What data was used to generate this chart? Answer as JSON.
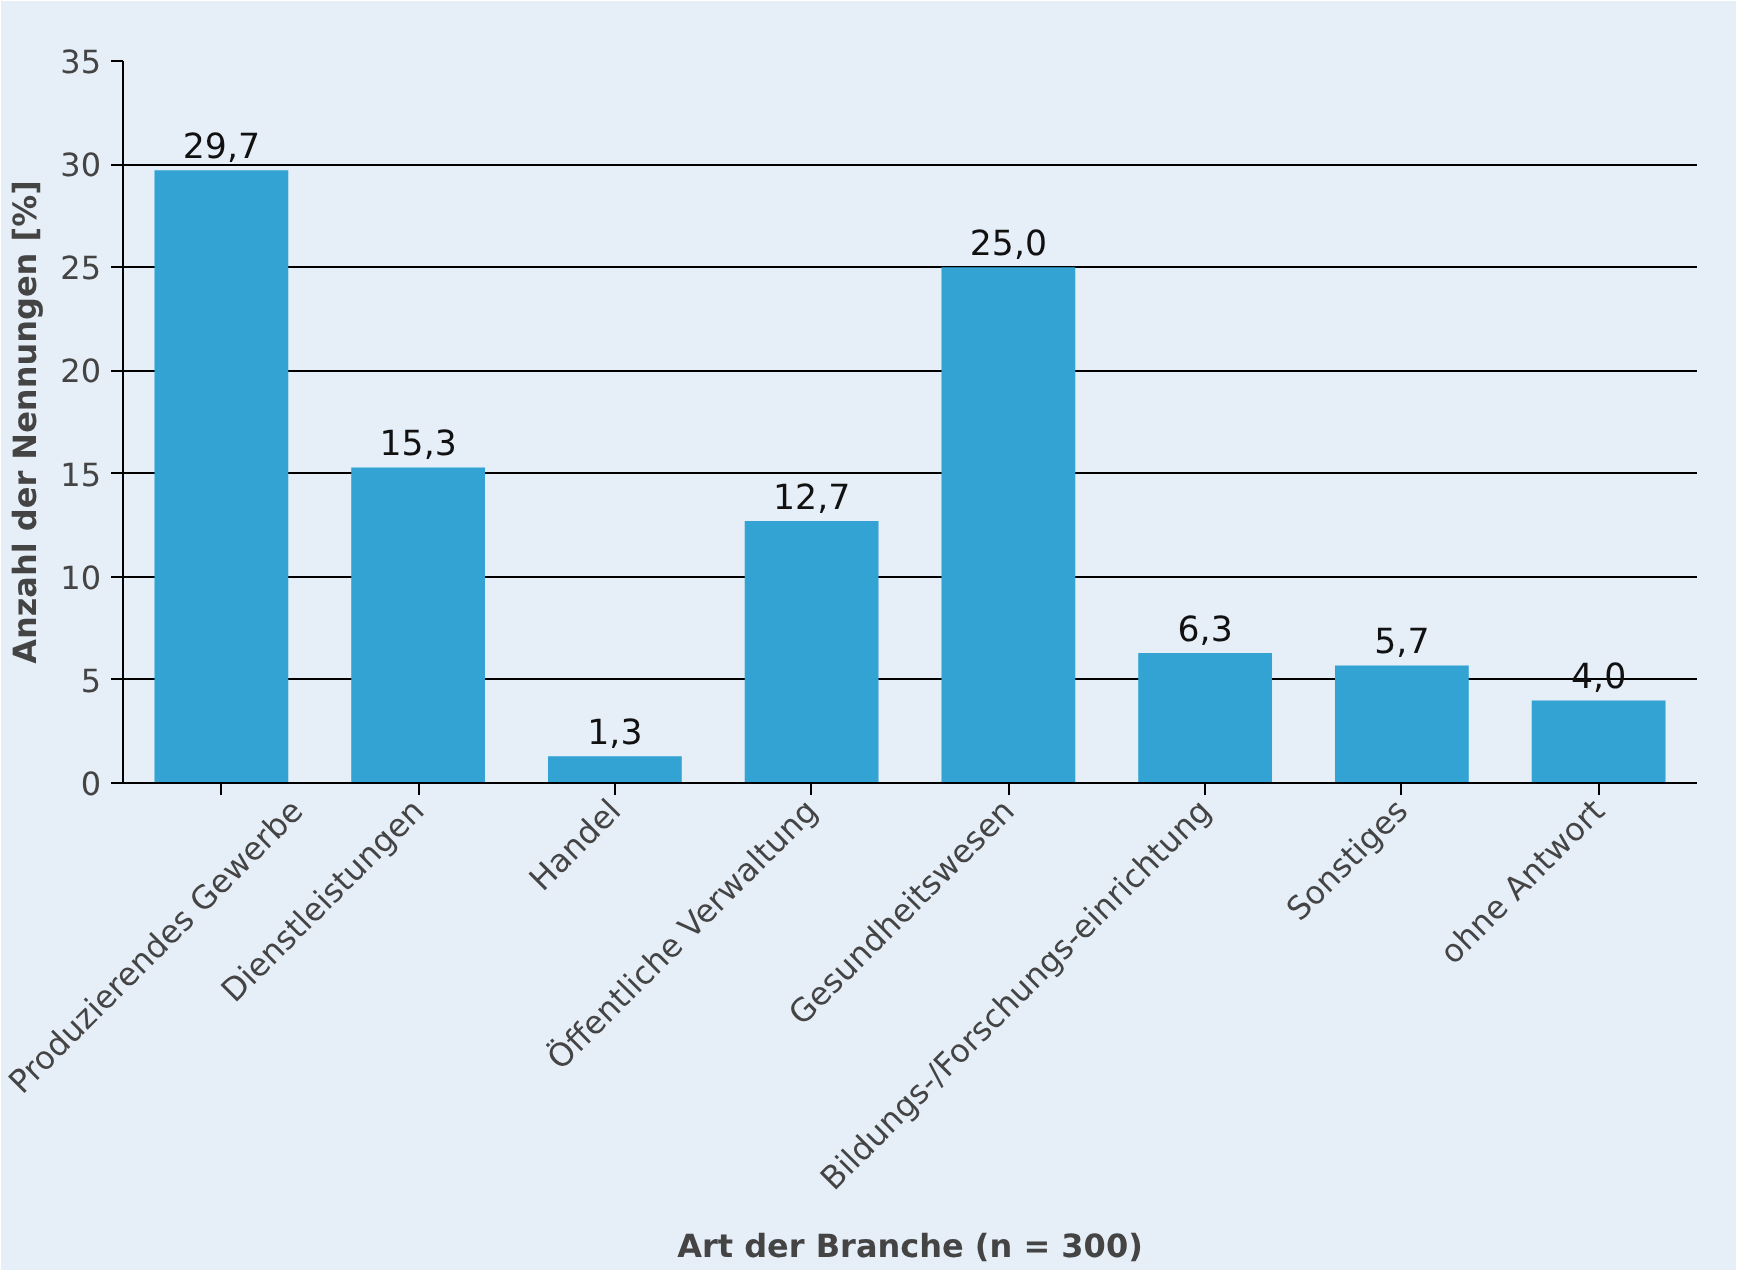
{
  "chart_data": {
    "type": "bar",
    "xlabel": "Art der Branche (n = 300)",
    "ylabel": "Anzahl der Nennungen [%]",
    "categories": [
      "Produzierendes Gewerbe",
      "Dienstleistungen",
      "Handel",
      "Öffentliche Verwaltung",
      "Gesundheitswesen",
      "Bildungs-/Forschungs-einrichtung",
      "Sonstiges",
      "ohne Antwort"
    ],
    "values": [
      29.7,
      15.3,
      1.3,
      12.7,
      25.0,
      6.3,
      5.7,
      4.0
    ],
    "value_labels": [
      "29,7",
      "15,3",
      "1,3",
      "12,7",
      "25,0",
      "6,3",
      "5,7",
      "4,0"
    ],
    "color": "#33a3d3",
    "ylim": [
      0,
      35
    ],
    "yticks": [
      0,
      5,
      10,
      15,
      20,
      25,
      30,
      35
    ],
    "grid": "y"
  }
}
